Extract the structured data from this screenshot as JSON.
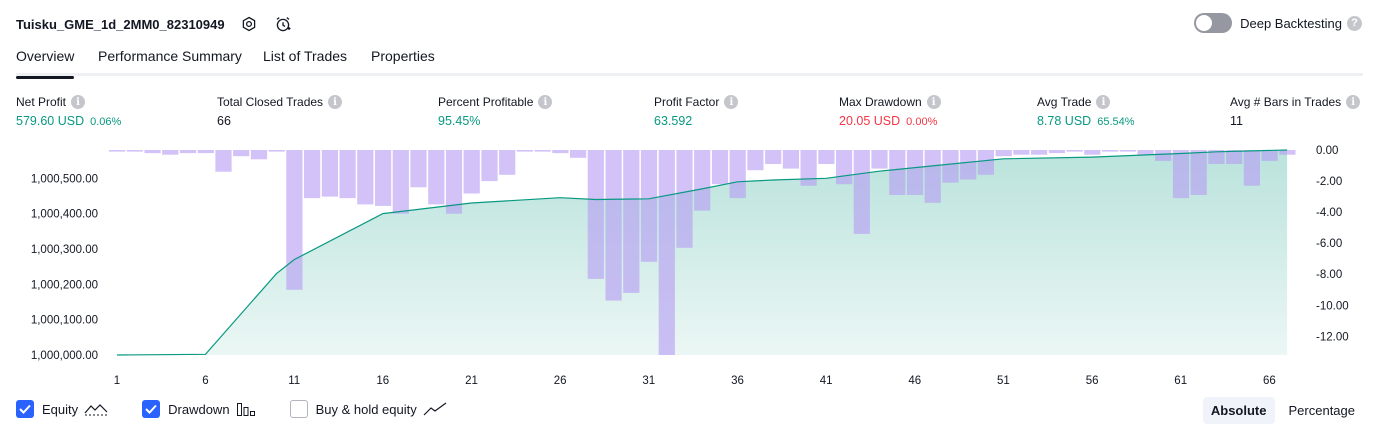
{
  "header": {
    "title": "Tuisku_GME_1d_2MM0_82310949",
    "settings_icon": "gear-icon",
    "alert_icon": "alarm-clock-icon"
  },
  "deep_backtesting": {
    "label": "Deep Backtesting",
    "enabled": false
  },
  "tabs": [
    {
      "label": "Overview",
      "active": true
    },
    {
      "label": "Performance Summary",
      "active": false
    },
    {
      "label": "List of Trades",
      "active": false
    },
    {
      "label": "Properties",
      "active": false
    }
  ],
  "metrics": [
    {
      "label": "Net Profit",
      "value": "579.60 USD",
      "pct": "0.06%",
      "color": "#089981"
    },
    {
      "label": "Total Closed Trades",
      "value": "66",
      "pct": "",
      "color": "#131722"
    },
    {
      "label": "Percent Profitable",
      "value": "95.45%",
      "pct": "",
      "color": "#089981"
    },
    {
      "label": "Profit Factor",
      "value": "63.592",
      "pct": "",
      "color": "#089981"
    },
    {
      "label": "Max Drawdown",
      "value": "20.05 USD",
      "pct": "0.00%",
      "color": "#f23645"
    },
    {
      "label": "Avg Trade",
      "value": "8.78 USD",
      "pct": "65.54%",
      "color": "#089981"
    },
    {
      "label": "Avg # Bars in Trades",
      "value": "11",
      "pct": "",
      "color": "#131722"
    }
  ],
  "chart_data": {
    "type": "line+bar",
    "x_ticks": [
      "1",
      "6",
      "11",
      "16",
      "21",
      "26",
      "31",
      "36",
      "41",
      "46",
      "51",
      "56",
      "61",
      "66"
    ],
    "y_left_ticks": [
      "1,000,000.00",
      "1,000,100.00",
      "1,000,200.00",
      "1,000,300.00",
      "1,000,400.00",
      "1,000,500.00"
    ],
    "y_right_ticks": [
      "0.00",
      "-2.00",
      "-4.00",
      "-6.00",
      "-8.00",
      "-10.00",
      "-12.00"
    ],
    "ylim_left": [
      1000000,
      1000580
    ],
    "ylim_right": [
      -13.2,
      0
    ],
    "series": [
      {
        "name": "Equity",
        "color": "#089981",
        "x": [
          1,
          6,
          10,
          11,
          16,
          21,
          26,
          28,
          31,
          34,
          36,
          38,
          41,
          44,
          47,
          51,
          56,
          61,
          63,
          67
        ],
        "values": [
          1000000,
          1000002,
          1000230,
          1000270,
          1000400,
          1000430,
          1000445,
          1000440,
          1000442,
          1000470,
          1000490,
          1000495,
          1000500,
          1000520,
          1000535,
          1000555,
          1000560,
          1000570,
          1000575,
          1000580
        ]
      },
      {
        "name": "Drawdown",
        "color": "#b79cf4",
        "x": [
          1,
          2,
          3,
          4,
          5,
          6,
          7,
          8,
          9,
          10,
          11,
          12,
          13,
          14,
          15,
          16,
          17,
          18,
          19,
          20,
          21,
          22,
          23,
          24,
          25,
          26,
          27,
          28,
          29,
          30,
          31,
          32,
          33,
          34,
          35,
          36,
          37,
          38,
          39,
          40,
          41,
          42,
          43,
          44,
          45,
          46,
          47,
          48,
          49,
          50,
          51,
          52,
          53,
          54,
          55,
          56,
          57,
          58,
          59,
          60,
          61,
          62,
          63,
          64,
          65,
          66,
          67
        ],
        "values": [
          -0.1,
          -0.1,
          -0.2,
          -0.3,
          -0.2,
          -0.2,
          -1.4,
          -0.4,
          -0.6,
          -0.1,
          -9.0,
          -3.1,
          -3.0,
          -3.1,
          -3.5,
          -3.6,
          -4.1,
          -2.4,
          -3.5,
          -4.1,
          -2.8,
          -2.0,
          -1.6,
          -0.1,
          -0.1,
          -0.2,
          -0.5,
          -8.3,
          -9.7,
          -9.2,
          -7.2,
          -13.2,
          -6.3,
          -3.9,
          -2.2,
          -3.1,
          -1.3,
          -0.9,
          -1.2,
          -2.3,
          -0.9,
          -2.2,
          -5.4,
          -1.2,
          -2.9,
          -2.9,
          -3.4,
          -2.1,
          -1.9,
          -1.6,
          -0.4,
          -0.3,
          -0.3,
          -0.2,
          -0.1,
          -0.3,
          -0.1,
          -0.1,
          -0.3,
          -0.7,
          -3.1,
          -2.9,
          -0.9,
          -0.9,
          -2.3,
          -0.7,
          -0.3
        ]
      }
    ],
    "legend_position": "bottom-left",
    "grid": false
  },
  "legend": [
    {
      "label": "Equity",
      "checked": true,
      "icon": "equity-line-icon"
    },
    {
      "label": "Drawdown",
      "checked": true,
      "icon": "drawdown-bars-icon"
    },
    {
      "label": "Buy & hold equity",
      "checked": false,
      "icon": "buy-hold-line-icon"
    }
  ],
  "scale_toggle": {
    "options": [
      "Absolute",
      "Percentage"
    ],
    "selected": "Absolute"
  }
}
